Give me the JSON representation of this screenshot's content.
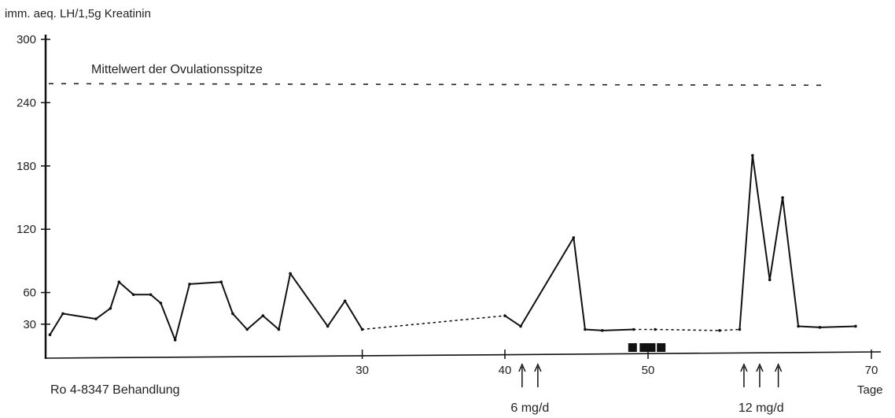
{
  "chart_data": {
    "type": "line",
    "ylabel": "imm. aeq. LH/1,5g Kreatinin",
    "xlabel": "Tage",
    "treatment_label": "Ro 4-8347 Behandlung",
    "reference_line": {
      "label": "Mittelwert der Ovulationsspitze",
      "value": 258
    },
    "yticks": [
      30,
      60,
      120,
      180,
      240,
      300
    ],
    "xticks": [
      30,
      40,
      50,
      70
    ],
    "xlim": [
      8,
      70
    ],
    "ylim": [
      0,
      300
    ],
    "grid": false,
    "series": [
      {
        "x": [
          8.3,
          9.2,
          11.5,
          12.5,
          13.1,
          14.1,
          15.3,
          16.0,
          17.0,
          18.0,
          20.2,
          21.0,
          22.0,
          23.1,
          24.2,
          25.0,
          27.6,
          28.8,
          30.0,
          40.0,
          41.1,
          44.8,
          45.6,
          46.8,
          49.0,
          50.5,
          55.0,
          56.4,
          57.3,
          58.5,
          59.4,
          60.5,
          62.0,
          64.5
        ],
        "y": [
          20,
          40,
          35,
          45,
          70,
          58,
          58,
          50,
          15,
          68,
          70,
          40,
          25,
          38,
          25,
          78,
          28,
          52,
          25,
          38,
          28,
          112,
          25,
          24,
          25,
          25,
          24,
          25,
          190,
          72,
          150,
          28,
          27,
          28
        ]
      }
    ],
    "dotted_segments": [
      [
        30.0,
        40.0
      ],
      [
        49.0,
        56.4
      ]
    ],
    "dose_annotations": [
      {
        "label": "6 mg/d",
        "arrows_at_day": [
          41.2,
          42.3
        ]
      },
      {
        "label": "12 mg/d",
        "arrows_at_day": [
          56.7,
          57.8,
          59.1
        ]
      }
    ],
    "menses_markers_day": [
      49.0,
      49.8,
      50.3,
      51.0
    ]
  }
}
